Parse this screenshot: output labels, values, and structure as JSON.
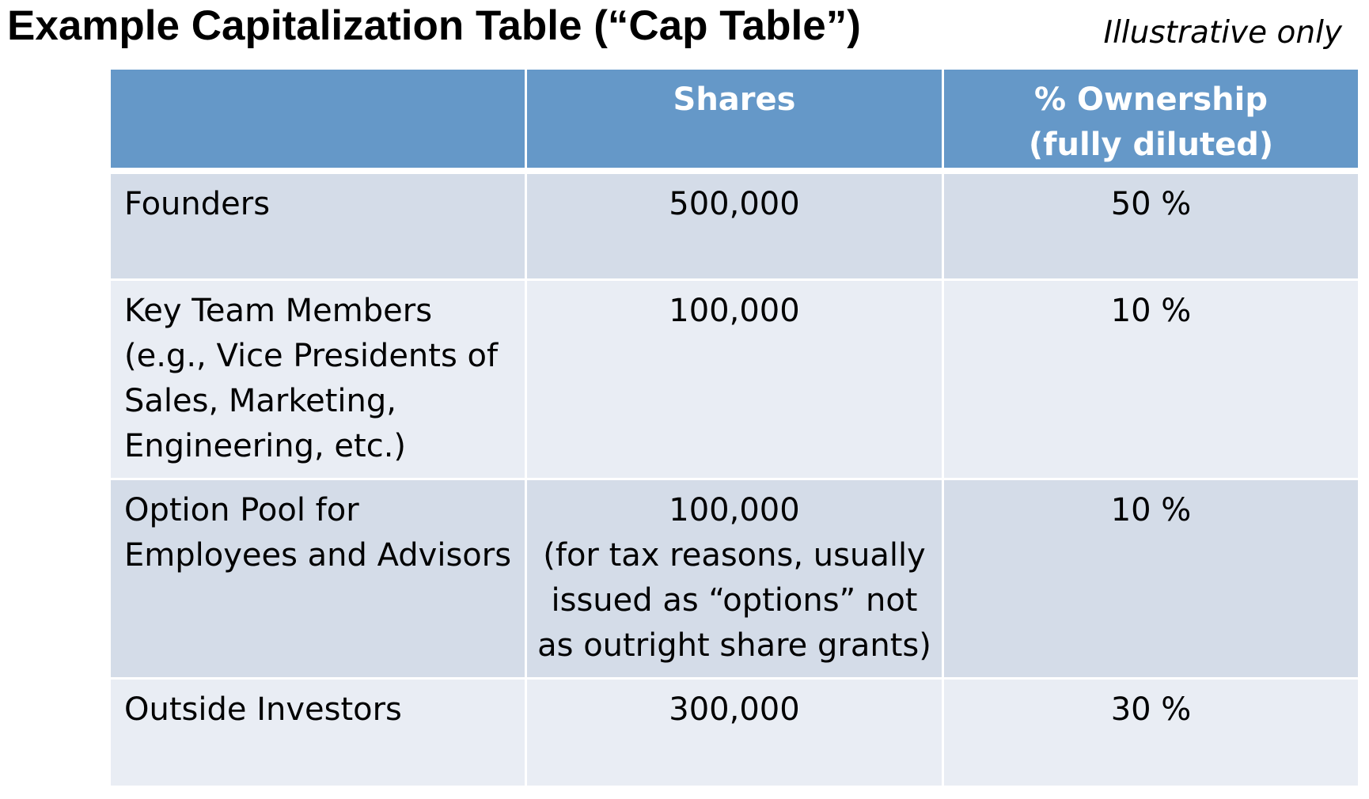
{
  "title": "Example Capitalization Table (“Cap Table”)",
  "note": "Illustrative only",
  "table": {
    "headers": {
      "label": "",
      "shares": "Shares",
      "ownership_line1": "% Ownership",
      "ownership_line2": "(fully diluted)"
    },
    "rows": [
      {
        "label_lines": [
          "Founders"
        ],
        "shares_lines": [
          "500,000"
        ],
        "ownership": "50 %"
      },
      {
        "label_lines": [
          "Key Team Members",
          "(e.g., Vice Presidents of",
          "Sales, Marketing,",
          "Engineering, etc.)"
        ],
        "shares_lines": [
          "100,000"
        ],
        "ownership": "10 %"
      },
      {
        "label_lines": [
          "Option Pool for",
          "Employees and Advisors"
        ],
        "shares_lines": [
          "100,000",
          "(for tax reasons, usually",
          "issued as “options” not",
          "as outright share grants)"
        ],
        "ownership": "10 %"
      },
      {
        "label_lines": [
          "Outside Investors"
        ],
        "shares_lines": [
          "300,000"
        ],
        "ownership": "30 %"
      }
    ]
  },
  "colors": {
    "header_bg": "#6598c8",
    "row_dark": "#d4dce8",
    "row_light": "#e9edf4",
    "header_text": "#ffffff"
  }
}
